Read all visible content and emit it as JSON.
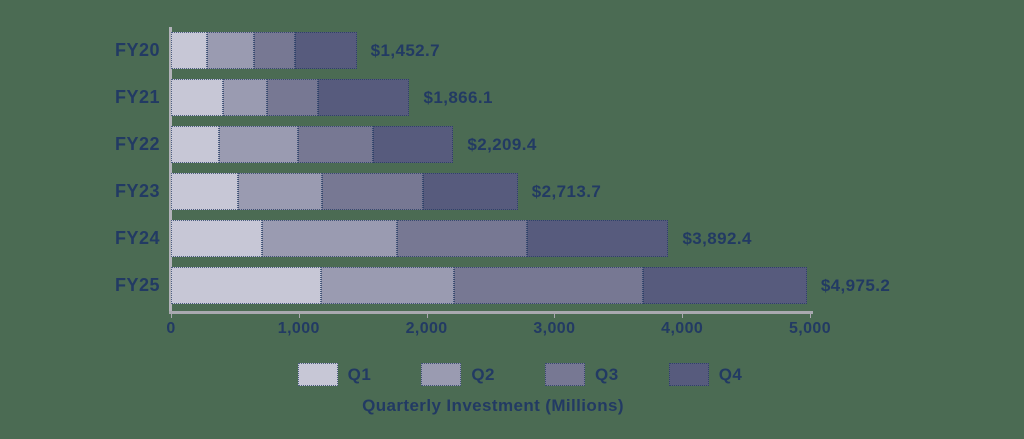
{
  "chart_data": {
    "type": "bar",
    "orientation": "horizontal",
    "stacked": true,
    "title": "Quarterly Investment (Millions)",
    "categories": [
      "FY20",
      "FY21",
      "FY22",
      "FY23",
      "FY24",
      "FY25"
    ],
    "series": [
      {
        "name": "Q1",
        "color": "#c7c7d6",
        "values": [
          280.0,
          405.0,
          376.0,
          524.0,
          712.0,
          1174.0
        ]
      },
      {
        "name": "Q2",
        "color": "#9a9bb1",
        "values": [
          368.0,
          350.0,
          618.0,
          657.0,
          1056.0,
          1040.0
        ]
      },
      {
        "name": "Q3",
        "color": "#777893",
        "values": [
          322.0,
          392.0,
          587.0,
          790.0,
          1017.0,
          1479.0
        ]
      },
      {
        "name": "Q4",
        "color": "#575b7d",
        "values": [
          482.7,
          719.1,
          628.4,
          742.7,
          1107.4,
          1282.2
        ]
      }
    ],
    "totals": [
      1452.7,
      1866.1,
      2209.4,
      2713.7,
      3892.4,
      4975.2
    ],
    "total_labels": [
      "$1,452.7",
      "$1,866.1",
      "$2,209.4",
      "$2,713.7",
      "$3,892.4",
      "$4,975.2"
    ],
    "x_axis": {
      "min": 0,
      "max": 5000,
      "tick_values": [
        0,
        1000,
        2000,
        3000,
        4000,
        5000
      ],
      "tick_labels": [
        "0",
        "1,000",
        "2,000",
        "3,000",
        "4,000",
        "5,000"
      ]
    },
    "legend": [
      "Q1",
      "Q2",
      "Q3",
      "Q4"
    ],
    "legend_position": "bottom",
    "grid": false
  },
  "style": {
    "background_color": "#4b6b53",
    "text_color": "#223a63",
    "axis_color": "#a9a9b0"
  }
}
